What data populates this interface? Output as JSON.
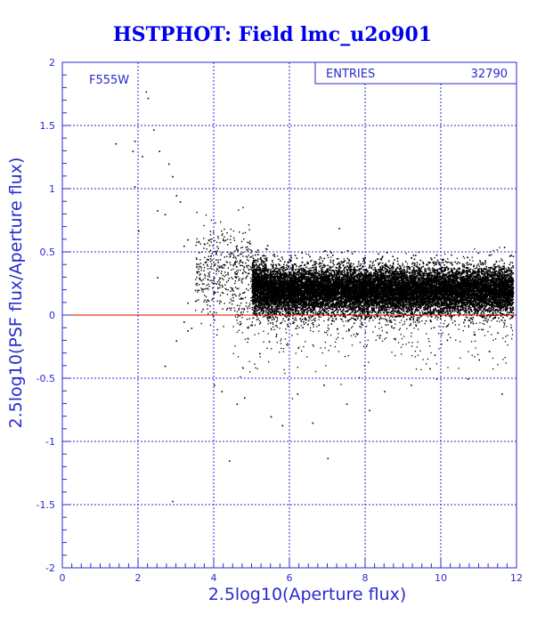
{
  "chart_data": {
    "type": "scatter",
    "title": "HSTPHOT: Field lmc_u2o901",
    "xlabel": "2.5log10(Aperture flux)",
    "ylabel": "2.5log10(PSF flux/Aperture flux)",
    "xlim": [
      0,
      12
    ],
    "ylim": [
      -2,
      2
    ],
    "x_ticks": [
      "0",
      "2",
      "4",
      "6",
      "8",
      "10",
      "12"
    ],
    "y_ticks": [
      "2",
      "1.5",
      "1",
      "0.5",
      "0",
      "-0.5",
      "-1",
      "-1.5",
      "-2"
    ],
    "grid": true,
    "filter_label": "F555W",
    "stats": {
      "label": "ENTRIES",
      "value": "32790"
    },
    "reference_line": {
      "y": 0,
      "color": "#dd0000"
    },
    "colors": {
      "axes": "#2a2ad0",
      "points": "#000000",
      "title": "#0000ee",
      "grid": "#2a2ad0"
    },
    "points": [
      [
        2.2,
        1.77
      ],
      [
        2.25,
        1.72
      ],
      [
        1.4,
        1.36
      ],
      [
        1.9,
        1.38
      ],
      [
        1.85,
        1.3
      ],
      [
        2.1,
        1.26
      ],
      [
        2.4,
        1.47
      ],
      [
        2.55,
        1.3
      ],
      [
        2.8,
        1.2
      ],
      [
        2.9,
        1.1
      ],
      [
        1.9,
        1.02
      ],
      [
        2.5,
        0.83
      ],
      [
        2.7,
        0.8
      ],
      [
        3.0,
        0.95
      ],
      [
        3.1,
        0.9
      ],
      [
        2.0,
        0.67
      ],
      [
        3.2,
        0.55
      ],
      [
        3.3,
        0.6
      ],
      [
        2.5,
        0.3
      ],
      [
        3.5,
        0.2
      ],
      [
        3.3,
        0.1
      ],
      [
        3.4,
        -0.1
      ],
      [
        3.2,
        -0.05
      ],
      [
        2.7,
        -0.4
      ],
      [
        3.3,
        -0.12
      ],
      [
        3.7,
        0.05
      ],
      [
        3.0,
        -0.2
      ],
      [
        2.9,
        -1.47
      ],
      [
        4.2,
        -0.6
      ],
      [
        4.6,
        -0.7
      ],
      [
        4.8,
        -0.65
      ],
      [
        5.5,
        -0.8
      ],
      [
        5.8,
        -0.87
      ],
      [
        6.6,
        -0.85
      ],
      [
        7.0,
        -1.13
      ],
      [
        6.2,
        -0.62
      ],
      [
        7.5,
        -0.7
      ],
      [
        8.5,
        -0.6
      ],
      [
        9.2,
        -0.55
      ],
      [
        10.7,
        -0.5
      ],
      [
        11.6,
        -0.62
      ],
      [
        4.0,
        -0.55
      ],
      [
        4.4,
        -1.15
      ],
      [
        7.3,
        0.69
      ],
      [
        5.2,
        -0.3
      ],
      [
        9.7,
        -0.42
      ],
      [
        8.1,
        -0.75
      ],
      [
        6.9,
        -0.55
      ],
      [
        11.0,
        -0.35
      ]
    ],
    "main_cloud": {
      "x_range": [
        5.0,
        11.9
      ],
      "y_center": 0.2,
      "y_spread": 0.09,
      "point_count": 15000
    },
    "transition": {
      "x_range": [
        3.5,
        5.0
      ],
      "point_count": 450
    },
    "outlier_count": 900
  }
}
